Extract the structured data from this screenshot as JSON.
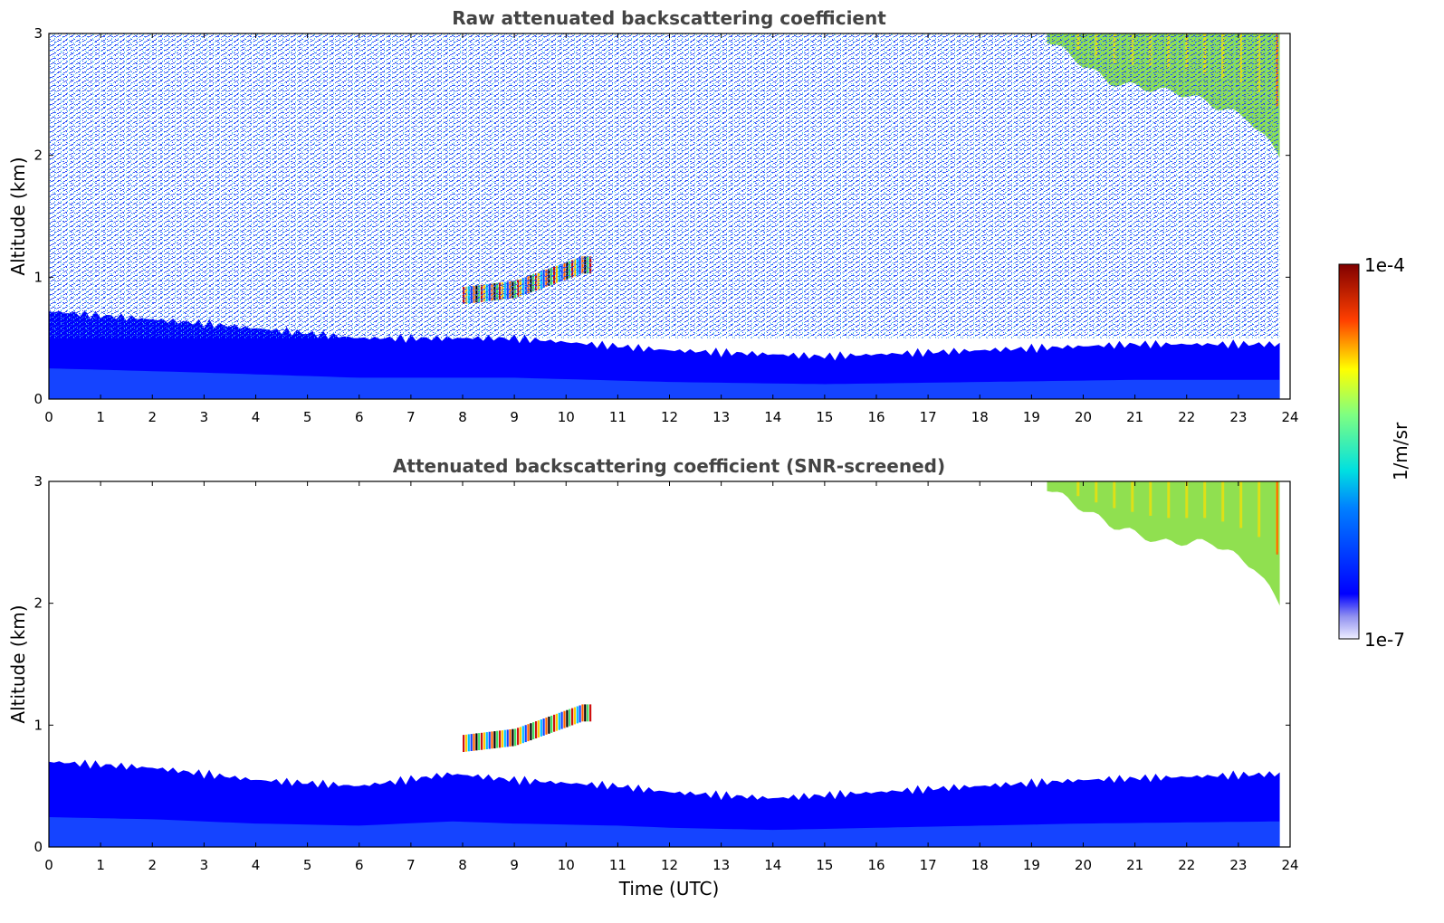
{
  "chart_data": [
    {
      "type": "heatmap",
      "title": "Raw attenuated backscattering coefficient",
      "xlabel": "",
      "ylabel": "Altitude (km)",
      "xlim": [
        0,
        24
      ],
      "ylim": [
        0,
        3
      ],
      "xticks": [
        "0",
        "1",
        "2",
        "3",
        "4",
        "5",
        "6",
        "7",
        "8",
        "9",
        "10",
        "11",
        "12",
        "13",
        "14",
        "15",
        "16",
        "17",
        "18",
        "19",
        "20",
        "21",
        "22",
        "23",
        "24"
      ],
      "yticks": [
        "0",
        "1",
        "2",
        "3"
      ],
      "features": [
        {
          "kind": "boundary_layer",
          "x_range": [
            0,
            23.8
          ],
          "top_km": [
            [
              0,
              0.72
            ],
            [
              3,
              0.62
            ],
            [
              6,
              0.5
            ],
            [
              9,
              0.5
            ],
            [
              12,
              0.4
            ],
            [
              15,
              0.35
            ],
            [
              18,
              0.4
            ],
            [
              21,
              0.45
            ],
            [
              23.8,
              0.45
            ]
          ],
          "color": "#0000ff"
        },
        {
          "kind": "aerosol_layer",
          "x_range": [
            8.0,
            10.5
          ],
          "alt_km": [
            [
              8.0,
              0.85
            ],
            [
              9.0,
              0.9
            ],
            [
              10.3,
              1.1
            ]
          ],
          "color": "#d01010"
        },
        {
          "kind": "cloud",
          "x_range": [
            19.3,
            23.8
          ],
          "base_km": [
            [
              19.3,
              2.95
            ],
            [
              20.5,
              2.6
            ],
            [
              22,
              2.5
            ],
            [
              23.2,
              2.3
            ],
            [
              23.8,
              2.0
            ]
          ],
          "top_km": 3,
          "color": "#90e050"
        },
        {
          "kind": "noise",
          "x_range": [
            0,
            23.8
          ],
          "alt_range": [
            0.5,
            3
          ],
          "color": "#1e50ff"
        }
      ]
    },
    {
      "type": "heatmap",
      "title": "Attenuated backscattering coefficient (SNR-screened)",
      "xlabel": "Time (UTC)",
      "ylabel": "Altitude (km)",
      "xlim": [
        0,
        24
      ],
      "ylim": [
        0,
        3
      ],
      "xticks": [
        "0",
        "1",
        "2",
        "3",
        "4",
        "5",
        "6",
        "7",
        "8",
        "9",
        "10",
        "11",
        "12",
        "13",
        "14",
        "15",
        "16",
        "17",
        "18",
        "19",
        "20",
        "21",
        "22",
        "23",
        "24"
      ],
      "yticks": [
        "0",
        "1",
        "2",
        "3"
      ],
      "features": [
        {
          "kind": "boundary_layer",
          "x_range": [
            0,
            23.8
          ],
          "top_km": [
            [
              0,
              0.7
            ],
            [
              2,
              0.65
            ],
            [
              4,
              0.55
            ],
            [
              6,
              0.5
            ],
            [
              7.8,
              0.6
            ],
            [
              9,
              0.55
            ],
            [
              11,
              0.5
            ],
            [
              12,
              0.45
            ],
            [
              14,
              0.4
            ],
            [
              16,
              0.45
            ],
            [
              18,
              0.5
            ],
            [
              20,
              0.55
            ],
            [
              23.8,
              0.6
            ]
          ],
          "color": "#0000ff"
        },
        {
          "kind": "aerosol_layer",
          "x_range": [
            8.0,
            10.5
          ],
          "alt_km": [
            [
              8.0,
              0.85
            ],
            [
              9.0,
              0.9
            ],
            [
              10.3,
              1.1
            ]
          ],
          "color": "#e0c000"
        },
        {
          "kind": "cloud",
          "x_range": [
            19.3,
            23.8
          ],
          "base_km": [
            [
              19.3,
              2.95
            ],
            [
              20.5,
              2.65
            ],
            [
              21.5,
              2.5
            ],
            [
              22.5,
              2.5
            ],
            [
              23.3,
              2.3
            ],
            [
              23.8,
              2.0
            ]
          ],
          "top_km": 3,
          "color": "#90e050"
        }
      ]
    }
  ],
  "colorbar": {
    "max_label": "1e-4",
    "min_label": "1e-7",
    "label": "1/m/sr",
    "scale": "log",
    "colormap": "jet"
  }
}
